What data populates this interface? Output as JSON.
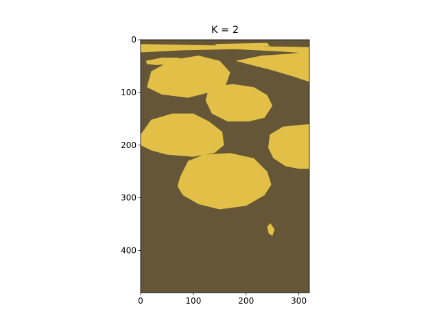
{
  "chart_data": {
    "type": "image",
    "title": "K = 2",
    "xlabel": "",
    "ylabel": "",
    "xlim": [
      0,
      320
    ],
    "ylim": [
      480,
      0
    ],
    "x_ticks": [
      0,
      100,
      200,
      300
    ],
    "y_ticks": [
      0,
      100,
      200,
      300,
      400
    ],
    "grid": false,
    "legend": "none",
    "colors": {
      "cluster_dark": "#645637",
      "cluster_light": "#e2c047"
    },
    "clusters": [
      {
        "color": "#645637"
      },
      {
        "color": "#e2c047"
      }
    ],
    "regions": [
      {
        "cluster": 1,
        "points": [
          [
            0,
            8
          ],
          [
            320,
            14
          ],
          [
            320,
            26
          ],
          [
            260,
            22
          ],
          [
            180,
            18
          ],
          [
            80,
            20
          ],
          [
            0,
            24
          ]
        ]
      },
      {
        "cluster": 1,
        "points": [
          [
            140,
            8
          ],
          [
            240,
            6
          ],
          [
            245,
            12
          ],
          [
            150,
            14
          ]
        ]
      },
      {
        "cluster": 1,
        "points": [
          [
            10,
            40
          ],
          [
            40,
            34
          ],
          [
            70,
            34
          ],
          [
            90,
            40
          ],
          [
            60,
            46
          ],
          [
            30,
            48
          ],
          [
            12,
            46
          ]
        ]
      },
      {
        "cluster": 1,
        "points": [
          [
            180,
            40
          ],
          [
            230,
            30
          ],
          [
            290,
            26
          ],
          [
            320,
            22
          ],
          [
            320,
            80
          ],
          [
            290,
            70
          ],
          [
            250,
            58
          ],
          [
            210,
            48
          ]
        ]
      },
      {
        "cluster": 1,
        "points": [
          [
            20,
            60
          ],
          [
            60,
            38
          ],
          [
            110,
            30
          ],
          [
            150,
            40
          ],
          [
            170,
            62
          ],
          [
            160,
            90
          ],
          [
            130,
            100
          ],
          [
            90,
            110
          ],
          [
            40,
            104
          ],
          [
            12,
            90
          ]
        ]
      },
      {
        "cluster": 1,
        "points": [
          [
            130,
            90
          ],
          [
            175,
            84
          ],
          [
            215,
            90
          ],
          [
            240,
            105
          ],
          [
            250,
            125
          ],
          [
            235,
            148
          ],
          [
            205,
            155
          ],
          [
            165,
            155
          ],
          [
            135,
            140
          ],
          [
            123,
            115
          ]
        ]
      },
      {
        "cluster": 1,
        "points": [
          [
            0,
            180
          ],
          [
            20,
            152
          ],
          [
            60,
            140
          ],
          [
            100,
            140
          ],
          [
            130,
            155
          ],
          [
            155,
            175
          ],
          [
            158,
            200
          ],
          [
            140,
            215
          ],
          [
            100,
            222
          ],
          [
            50,
            218
          ],
          [
            20,
            210
          ],
          [
            0,
            200
          ]
        ]
      },
      {
        "cluster": 1,
        "points": [
          [
            245,
            180
          ],
          [
            270,
            165
          ],
          [
            320,
            160
          ],
          [
            320,
            245
          ],
          [
            300,
            245
          ],
          [
            275,
            240
          ],
          [
            252,
            225
          ],
          [
            242,
            205
          ]
        ]
      },
      {
        "cluster": 1,
        "points": [
          [
            75,
            260
          ],
          [
            90,
            230
          ],
          [
            120,
            218
          ],
          [
            170,
            215
          ],
          [
            215,
            225
          ],
          [
            240,
            250
          ],
          [
            248,
            275
          ],
          [
            235,
            295
          ],
          [
            200,
            315
          ],
          [
            150,
            322
          ],
          [
            110,
            312
          ],
          [
            80,
            295
          ],
          [
            70,
            278
          ]
        ]
      },
      {
        "cluster": 1,
        "points": [
          [
            240,
            355
          ],
          [
            246,
            348
          ],
          [
            254,
            360
          ],
          [
            250,
            372
          ],
          [
            243,
            368
          ]
        ]
      }
    ]
  }
}
